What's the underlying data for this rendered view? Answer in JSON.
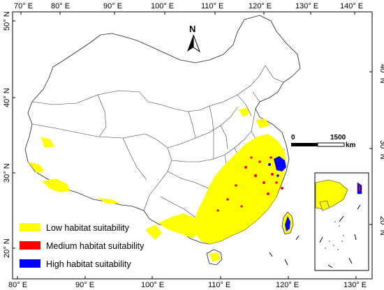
{
  "map": {
    "top_ticks": [
      "70° E",
      "80° E",
      "90° E",
      "100° E",
      "110° E",
      "120° E",
      "130° E",
      "140° E"
    ],
    "bottom_ticks": [
      "80° E",
      "90° E",
      "100° E",
      "110° E",
      "120° E",
      "130° E"
    ],
    "left_ticks": [
      "50° N",
      "40° N",
      "30° N",
      "20° N"
    ],
    "right_ticks": [
      "40° N",
      "30° N",
      "20° N"
    ],
    "north_label": "N",
    "scale": {
      "start_label": "0",
      "end_label": "1500",
      "unit_label": "km"
    },
    "legend": [
      {
        "label": "Low habitat suitability",
        "color": "#ffff00"
      },
      {
        "label": "Medium habitat suitability",
        "color": "#ff0000"
      },
      {
        "label": "High habitat suitability",
        "color": "#0000ff"
      }
    ],
    "colors": {
      "low": "#ffff00",
      "medium": "#ff0000",
      "high": "#0000ff",
      "boundary": "#222222",
      "background": "#ffffff"
    }
  }
}
